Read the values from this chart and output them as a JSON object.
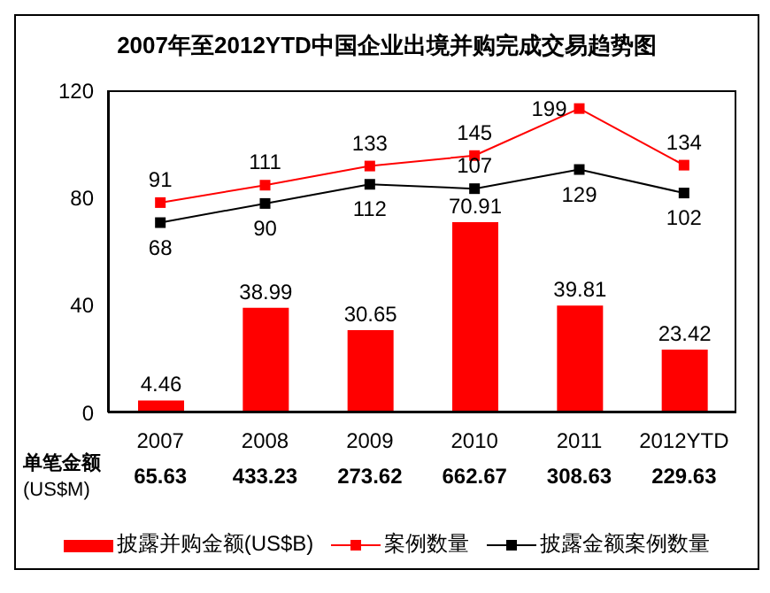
{
  "chart_data": {
    "type": "bar",
    "title": "2007年至2012YTD中国企业出境并购完成交易趋势图",
    "categories": [
      "2007",
      "2008",
      "2009",
      "2010",
      "2011",
      "2012YTD"
    ],
    "series": [
      {
        "name": "披露并购金额(US$B)",
        "color": "#ff0000",
        "values": [
          4.46,
          38.99,
          30.65,
          70.91,
          39.81,
          23.42
        ]
      },
      {
        "name": "案例数量",
        "type": "line",
        "axis": "y2",
        "color": "#ff0000",
        "values": [
          91,
          111,
          133,
          145,
          199,
          134
        ]
      },
      {
        "name": "披露金额案例数量",
        "type": "line",
        "axis": "y2",
        "color": "#000000",
        "values": [
          68,
          90,
          112,
          107,
          129,
          102
        ]
      }
    ],
    "ylim": [
      0,
      120
    ],
    "yticks": [
      0,
      40,
      80,
      120
    ],
    "y2lim": [
      -150,
      220
    ],
    "data_labels": true,
    "marker": "square",
    "grid": false,
    "legend": "bottom",
    "annotations": [
      "单笔金额",
      "(US$M)",
      "65.63",
      "433.23",
      "273.62",
      "662.67",
      "308.63",
      "229.63"
    ]
  }
}
